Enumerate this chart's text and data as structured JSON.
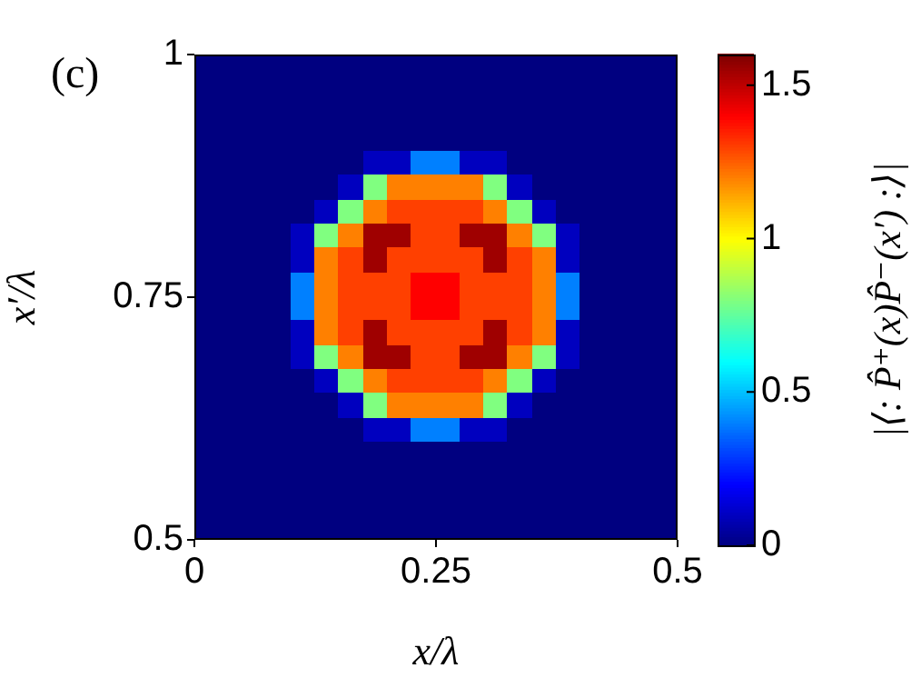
{
  "chart_data": {
    "type": "heatmap",
    "title": "(c)",
    "xlabel": "x/λ",
    "ylabel": "x′/λ",
    "clabel": "|⟨: P̂⁺(x)P̂⁻(x′) :⟩|",
    "x": [
      0.0125,
      0.0375,
      0.0625,
      0.0875,
      0.1125,
      0.1375,
      0.1625,
      0.1875,
      0.2125,
      0.2375,
      0.2625,
      0.2875,
      0.3125,
      0.3375,
      0.3625,
      0.3875,
      0.4125,
      0.4375,
      0.4625,
      0.4875
    ],
    "y": [
      0.9875,
      0.9625,
      0.9375,
      0.9125,
      0.8875,
      0.8625,
      0.8375,
      0.8125,
      0.7875,
      0.7625,
      0.7375,
      0.7125,
      0.6875,
      0.6625,
      0.6375,
      0.6125,
      0.5875,
      0.5625,
      0.5375,
      0.5125
    ],
    "cells": [
      [
        0,
        0,
        0,
        0,
        0,
        0,
        0,
        0,
        0,
        0,
        0,
        0,
        0,
        0,
        0,
        0,
        0,
        0,
        0,
        0
      ],
      [
        0,
        0,
        0,
        0,
        0,
        0,
        0,
        0,
        0,
        0,
        0,
        0,
        0,
        0,
        0,
        0,
        0,
        0,
        0,
        0
      ],
      [
        0,
        0,
        0,
        0,
        0,
        0,
        0,
        0,
        0,
        0,
        0,
        0,
        0,
        0,
        0,
        0,
        0,
        0,
        0,
        0
      ],
      [
        0,
        0,
        0,
        0,
        0,
        0,
        0,
        0,
        0,
        0,
        0,
        0,
        0,
        0,
        0,
        0,
        0,
        0,
        0,
        0
      ],
      [
        0,
        0,
        0,
        0,
        0,
        0,
        0,
        0.1,
        0.1,
        0.4,
        0.4,
        0.1,
        0.1,
        0,
        0,
        0,
        0,
        0,
        0,
        0
      ],
      [
        0,
        0,
        0,
        0,
        0,
        0,
        0.1,
        0.8,
        1.2,
        1.2,
        1.2,
        1.2,
        0.8,
        0.1,
        0,
        0,
        0,
        0,
        0,
        0
      ],
      [
        0,
        0,
        0,
        0,
        0,
        0.1,
        0.8,
        1.2,
        1.3,
        1.3,
        1.3,
        1.3,
        1.2,
        0.8,
        0.1,
        0,
        0,
        0,
        0,
        0
      ],
      [
        0,
        0,
        0,
        0,
        0.1,
        0.8,
        1.2,
        1.55,
        1.55,
        1.3,
        1.3,
        1.55,
        1.55,
        1.2,
        0.8,
        0.1,
        0,
        0,
        0,
        0
      ],
      [
        0,
        0,
        0,
        0,
        0.1,
        1.2,
        1.3,
        1.55,
        1.3,
        1.3,
        1.3,
        1.3,
        1.55,
        1.3,
        1.2,
        0.1,
        0,
        0,
        0,
        0
      ],
      [
        0,
        0,
        0,
        0,
        0.4,
        1.2,
        1.3,
        1.3,
        1.3,
        1.4,
        1.4,
        1.3,
        1.3,
        1.3,
        1.2,
        0.4,
        0,
        0,
        0,
        0
      ],
      [
        0,
        0,
        0,
        0,
        0.4,
        1.2,
        1.3,
        1.3,
        1.3,
        1.4,
        1.4,
        1.3,
        1.3,
        1.3,
        1.2,
        0.4,
        0,
        0,
        0,
        0
      ],
      [
        0,
        0,
        0,
        0,
        0.1,
        1.2,
        1.3,
        1.55,
        1.3,
        1.3,
        1.3,
        1.3,
        1.55,
        1.3,
        1.2,
        0.1,
        0,
        0,
        0,
        0
      ],
      [
        0,
        0,
        0,
        0,
        0.1,
        0.8,
        1.2,
        1.55,
        1.55,
        1.3,
        1.3,
        1.55,
        1.55,
        1.2,
        0.8,
        0.1,
        0,
        0,
        0,
        0
      ],
      [
        0,
        0,
        0,
        0,
        0,
        0.1,
        0.8,
        1.2,
        1.3,
        1.3,
        1.3,
        1.3,
        1.2,
        0.8,
        0.1,
        0,
        0,
        0,
        0,
        0
      ],
      [
        0,
        0,
        0,
        0,
        0,
        0,
        0.1,
        0.8,
        1.2,
        1.2,
        1.2,
        1.2,
        0.8,
        0.1,
        0,
        0,
        0,
        0,
        0,
        0
      ],
      [
        0,
        0,
        0,
        0,
        0,
        0,
        0,
        0.1,
        0.1,
        0.4,
        0.4,
        0.1,
        0.1,
        0,
        0,
        0,
        0,
        0,
        0,
        0
      ],
      [
        0,
        0,
        0,
        0,
        0,
        0,
        0,
        0,
        0,
        0,
        0,
        0,
        0,
        0,
        0,
        0,
        0,
        0,
        0,
        0
      ],
      [
        0,
        0,
        0,
        0,
        0,
        0,
        0,
        0,
        0,
        0,
        0,
        0,
        0,
        0,
        0,
        0,
        0,
        0,
        0,
        0
      ],
      [
        0,
        0,
        0,
        0,
        0,
        0,
        0,
        0,
        0,
        0,
        0,
        0,
        0,
        0,
        0,
        0,
        0,
        0,
        0,
        0
      ],
      [
        0,
        0,
        0,
        0,
        0,
        0,
        0,
        0,
        0,
        0,
        0,
        0,
        0,
        0,
        0,
        0,
        0,
        0,
        0,
        0
      ]
    ],
    "xlim": [
      0,
      0.5
    ],
    "ylim": [
      0.5,
      1
    ],
    "xticks": [
      0,
      0.25,
      0.5
    ],
    "yticks": [
      0.5,
      0.75,
      1
    ],
    "clim": [
      0,
      1.6
    ],
    "cticks": [
      0,
      0.5,
      1,
      1.5
    ]
  }
}
